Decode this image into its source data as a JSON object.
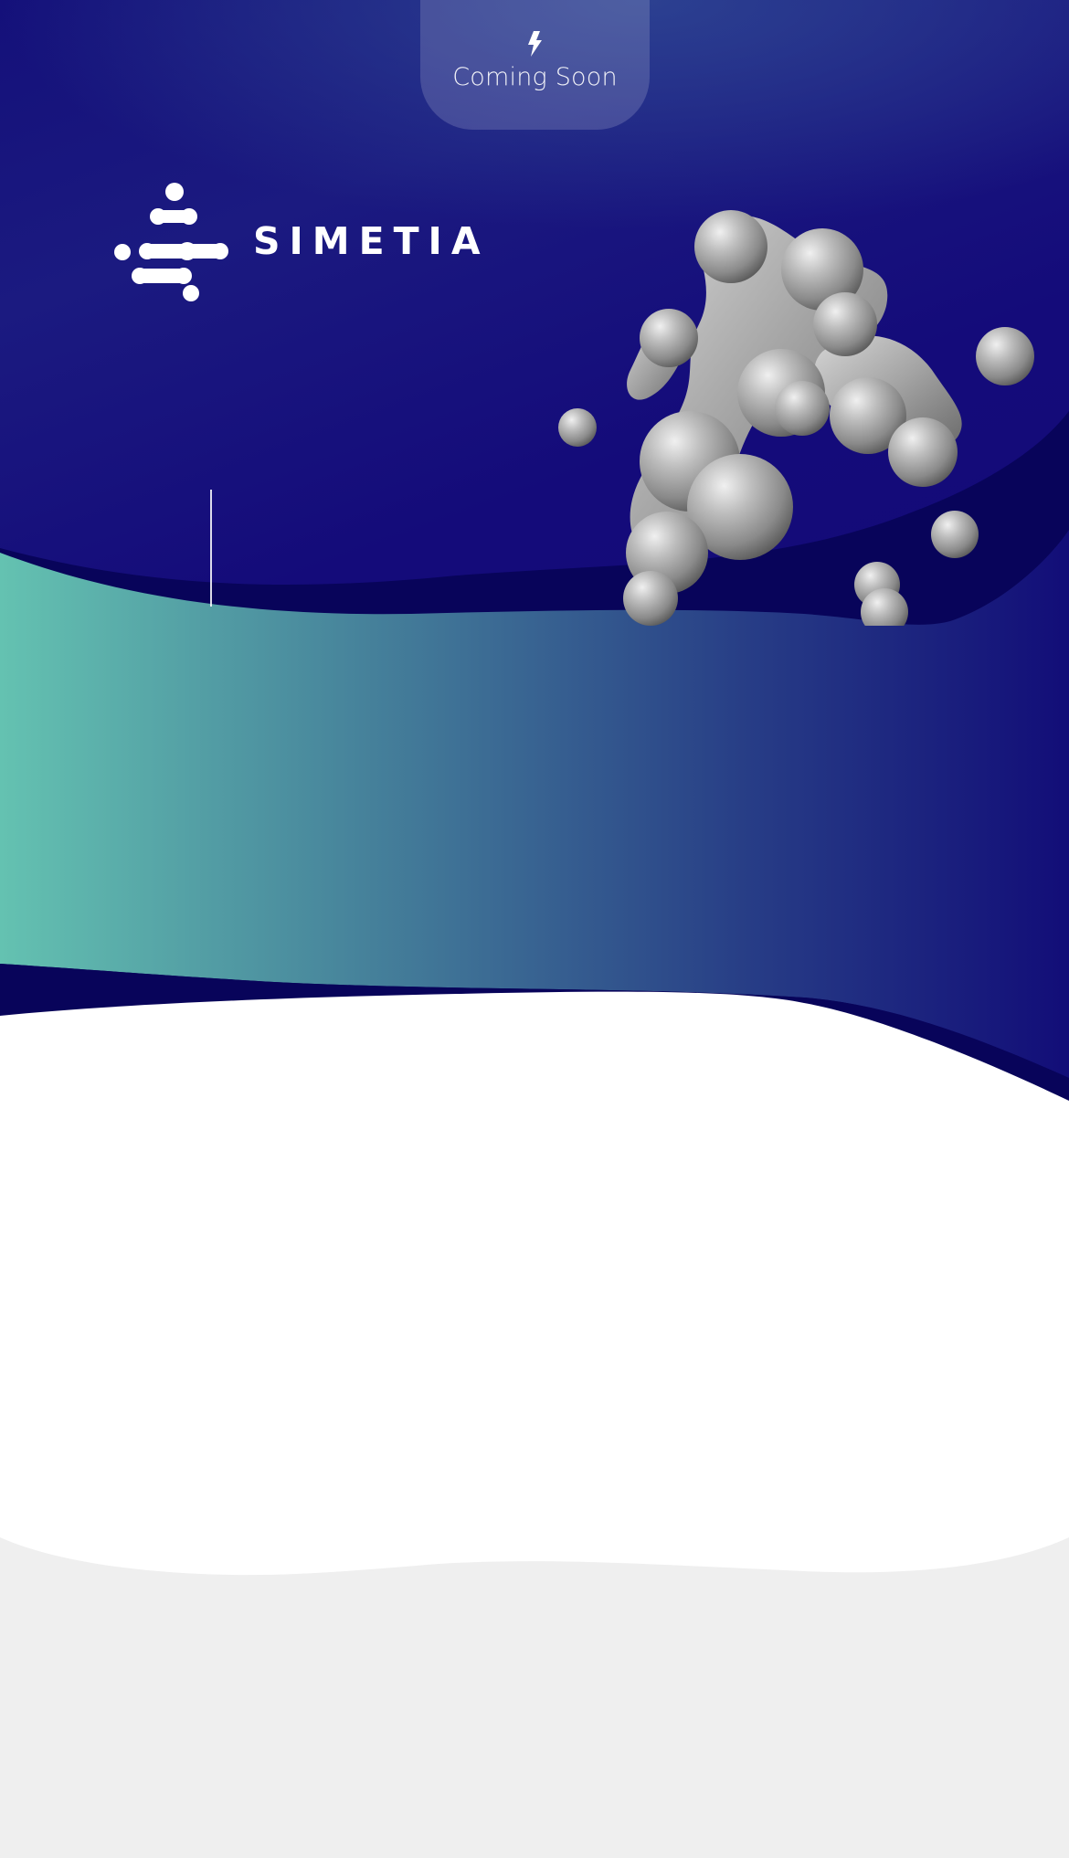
{
  "header": {
    "badge_label": "Coming Soon",
    "badge_icon": "lightning-bolt-icon"
  },
  "brand": {
    "logo_text": "SIMETIA",
    "logo_icon": "molecule-logo-icon"
  },
  "colors": {
    "navy_top": "#2b3a8c",
    "navy_main": "#140b7a",
    "navy_deep": "#08045a",
    "teal": "#63c1b0",
    "white": "#ffffff",
    "gray_bg": "#efefef",
    "blob_gray": "#a8a8a8"
  }
}
